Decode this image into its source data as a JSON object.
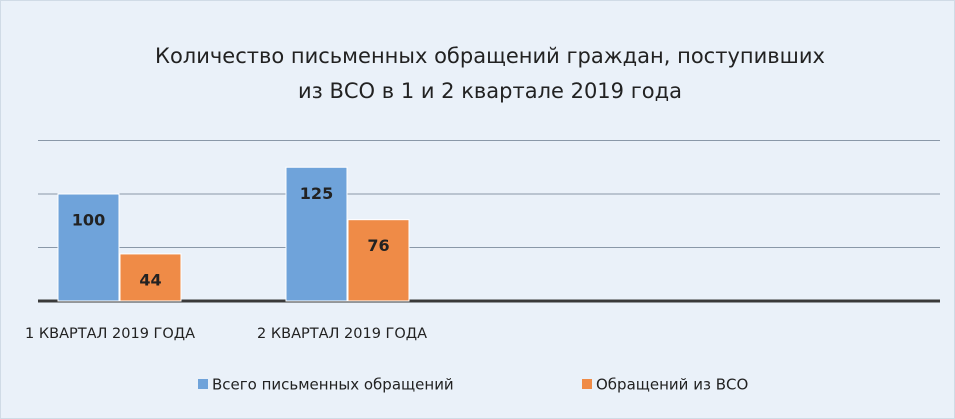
{
  "chart_data": {
    "type": "bar",
    "title": [
      "Количество письменных обращений граждан, поступивших",
      "из ВСО в 1 и 2 квартале 2019 года"
    ],
    "categories": [
      "1 КВАРТАЛ 2019 ГОДА",
      "2 КВАРТАЛ 2019 ГОДА"
    ],
    "series": [
      {
        "name": "Всего письменных обращений",
        "color": "#6fa3da",
        "values": [
          100,
          125
        ]
      },
      {
        "name": "Обращений из ВСО",
        "color": "#ef8b47",
        "values": [
          44,
          76
        ]
      }
    ],
    "ylim": [
      0,
      150
    ],
    "yticks": [
      0,
      50,
      100,
      150
    ],
    "grid": true,
    "legend": "bottom"
  }
}
